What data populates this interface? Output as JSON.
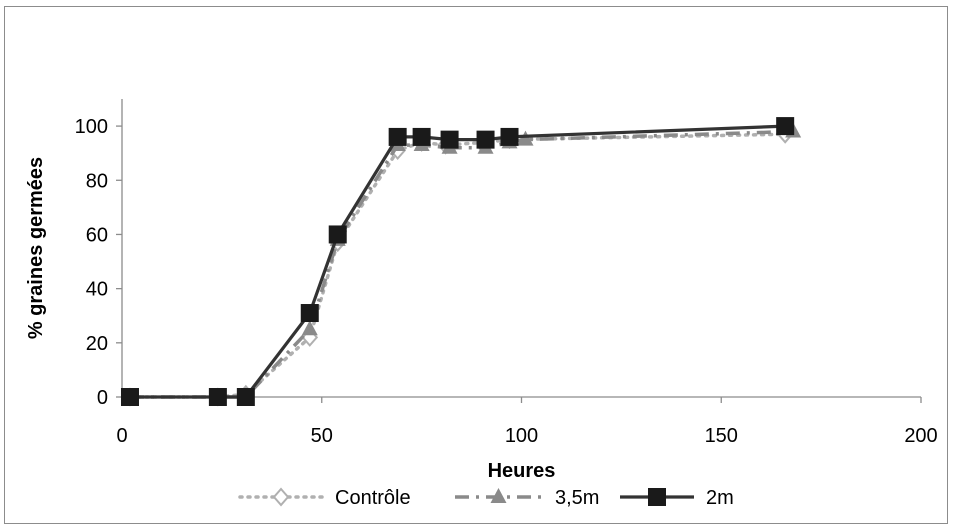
{
  "chart_data": {
    "type": "line",
    "title": "",
    "xlabel": "Heures",
    "ylabel": "% graines germées",
    "xlim": [
      0,
      200
    ],
    "ylim": [
      0,
      110
    ],
    "xticks": [
      0,
      50,
      100,
      150,
      200
    ],
    "yticks": [
      0,
      20,
      40,
      60,
      80,
      100
    ],
    "xtick_labels": [
      "0",
      "50",
      "100",
      "150",
      "200"
    ],
    "ytick_labels": [
      "0",
      "20",
      "40",
      "60",
      "80",
      "100"
    ],
    "grid": false,
    "legend_position": "bottom",
    "series": [
      {
        "name": "Contrôle",
        "color": "#b0b0b0",
        "line_style": "dotted",
        "marker": "diamond-open",
        "x": [
          2,
          24,
          31,
          47,
          54,
          69,
          75,
          81,
          91,
          97,
          166
        ],
        "y": [
          0,
          0,
          1,
          22,
          57,
          91,
          94,
          93,
          94,
          95,
          97
        ]
      },
      {
        "name": "3,5m",
        "color": "#8a8a8a",
        "line_style": "dash-dot",
        "marker": "triangle",
        "x": [
          2,
          24,
          31,
          47,
          54,
          69,
          75,
          82,
          91,
          97,
          101,
          168
        ],
        "y": [
          0,
          0,
          0,
          25,
          58,
          93,
          93,
          92,
          92,
          94,
          95,
          98
        ]
      },
      {
        "name": "2m",
        "color": "#333333",
        "line_style": "solid",
        "marker": "square",
        "x": [
          2,
          24,
          31,
          47,
          54,
          69,
          75,
          82,
          91,
          97,
          166
        ],
        "y": [
          0,
          0,
          0,
          31,
          60,
          96,
          96,
          95,
          95,
          96,
          100
        ]
      }
    ]
  }
}
